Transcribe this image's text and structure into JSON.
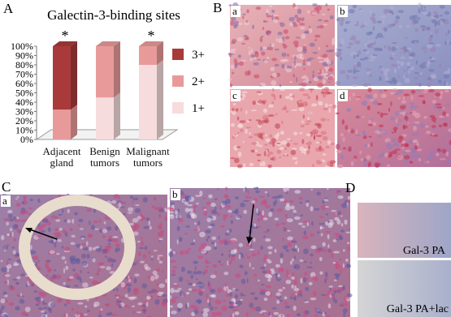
{
  "chart_data": {
    "type": "stacked-bar",
    "panel_label": "A",
    "title": "Galectin-3-binding sites",
    "categories": [
      "Adjacent gland",
      "Benign tumors",
      "Malignant tumors"
    ],
    "significance": [
      "*",
      null,
      "*"
    ],
    "series": [
      {
        "name": "1+",
        "color": "#f6dcdc",
        "values": [
          0,
          45,
          80
        ]
      },
      {
        "name": "2+",
        "color": "#e89a9a",
        "values": [
          32,
          55,
          20
        ]
      },
      {
        "name": "3+",
        "color": "#a83a3a",
        "values": [
          68,
          0,
          0
        ]
      }
    ],
    "ylim": [
      0,
      100
    ],
    "yticks": [
      {
        "value": 0,
        "label": "0%"
      },
      {
        "value": 10,
        "label": "10%"
      },
      {
        "value": 20,
        "label": "20%"
      },
      {
        "value": 30,
        "label": "30%"
      },
      {
        "value": 40,
        "label": "40%"
      },
      {
        "value": 50,
        "label": "50%"
      },
      {
        "value": 60,
        "label": "60%"
      },
      {
        "value": 70,
        "label": "70%"
      },
      {
        "value": 80,
        "label": "80%"
      },
      {
        "value": 90,
        "label": "90%"
      },
      {
        "value": 100,
        "label": "100%"
      }
    ]
  },
  "panels": {
    "B": {
      "label": "B",
      "images": [
        "a",
        "b",
        "c",
        "d"
      ]
    },
    "C": {
      "label": "C",
      "images": [
        "a",
        "b"
      ]
    },
    "D": {
      "label": "D",
      "captions": [
        "Gal-3 PA",
        "Gal-3 PA+lac"
      ]
    }
  }
}
